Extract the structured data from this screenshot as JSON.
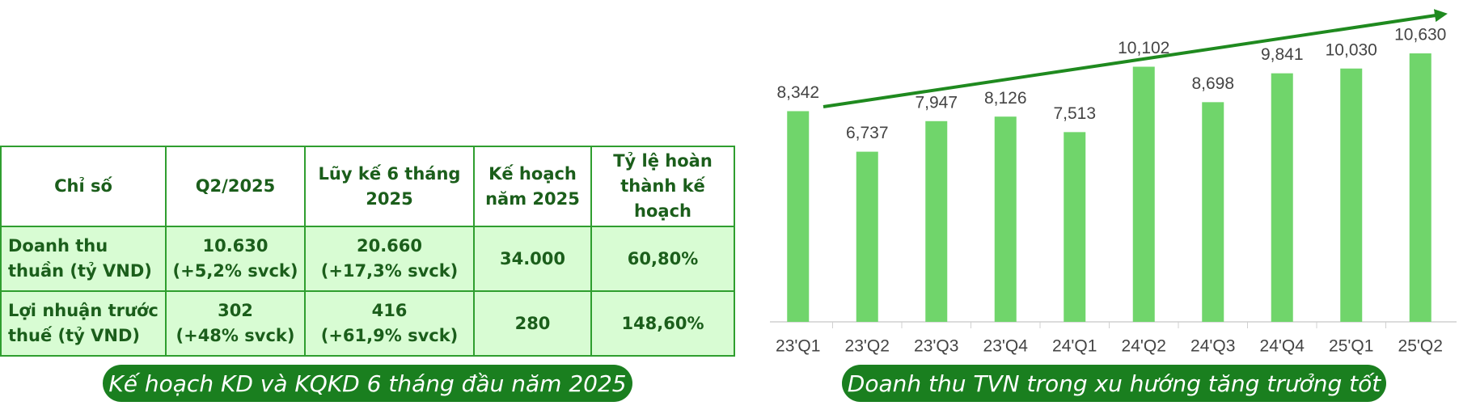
{
  "table": {
    "headers": [
      "Chỉ số",
      "Q2/2025",
      "Lũy kế 6 tháng 2025",
      "Kế hoạch năm 2025",
      "Tỷ lệ hoàn thành kế hoạch"
    ],
    "rows": [
      [
        {
          "label": "Doanh thu thuần (tỷ VND)"
        },
        {
          "value": "10.630",
          "change": "(+5,2% svck)"
        },
        {
          "value": "20.660",
          "change": "(+17,3% svck)"
        },
        {
          "value": "34.000"
        },
        {
          "value": "60,80%"
        }
      ],
      [
        {
          "label": "Lợi nhuận trước thuế (tỷ VND)"
        },
        {
          "value": "302",
          "change": "(+48% svck)"
        },
        {
          "value": "416",
          "change": "(+61,9% svck)"
        },
        {
          "value": "280"
        },
        {
          "value": "148,60%"
        }
      ]
    ],
    "caption": "Kế hoạch KD và KQKD 6 tháng đầu năm 2025"
  },
  "chart_data": {
    "type": "bar",
    "caption": "Doanh thu TVN trong xu hướng tăng trưởng tốt",
    "categories": [
      "23'Q1",
      "23'Q2",
      "23'Q3",
      "23'Q4",
      "24'Q1",
      "24'Q2",
      "24'Q3",
      "24'Q4",
      "25'Q1",
      "25'Q2"
    ],
    "values": [
      8342,
      6737,
      7947,
      8126,
      7513,
      10102,
      8698,
      9841,
      10030,
      10630
    ],
    "value_labels": [
      "8,342",
      "6,737",
      "7,947",
      "8,126",
      "7,513",
      "10,102",
      "8,698",
      "9,841",
      "10,030",
      "10,630"
    ],
    "color": "#70d56b",
    "trend_arrow": true,
    "trend_color": "#1f8a1f"
  }
}
